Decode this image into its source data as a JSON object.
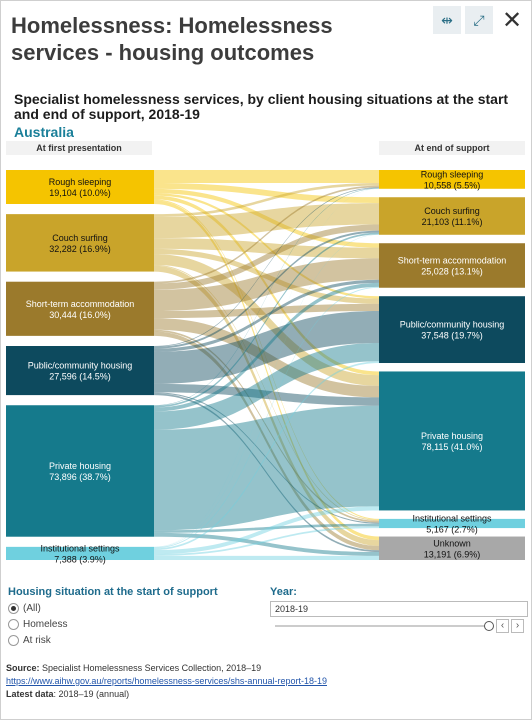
{
  "header": {
    "title": "Homelessness: Homelessness services - housing outcomes",
    "icons": [
      "compare-icon",
      "fullscreen-icon",
      "close-icon"
    ]
  },
  "chart_data": {
    "type": "sankey",
    "title": "Specialist homelessness services, by client housing situations at the start and end of support, 2018-19",
    "subtitle": "Australia",
    "left_heading": "At first presentation",
    "right_heading": "At end of support",
    "sources": [
      {
        "name": "Rough sleeping",
        "label": "19,104 (10.0%)",
        "value": 19104,
        "color": "#f5c400"
      },
      {
        "name": "Couch surfing",
        "label": "32,282 (16.9%)",
        "value": 32282,
        "color": "#c9a42a"
      },
      {
        "name": "Short-term accommodation",
        "label": "30,444 (16.0%)",
        "value": 30444,
        "color": "#9b7a2c"
      },
      {
        "name": "Public/community housing",
        "label": "27,596 (14.5%)",
        "value": 27596,
        "color": "#0d4a5e"
      },
      {
        "name": "Private housing",
        "label": "73,896 (38.7%)",
        "value": 73896,
        "color": "#157a8c"
      },
      {
        "name": "Institutional settings",
        "label": "7,388 (3.9%)",
        "value": 7388,
        "color": "#6fd0df"
      }
    ],
    "targets": [
      {
        "name": "Rough sleeping",
        "label": "10,558 (5.5%)",
        "value": 10558,
        "color": "#f5c400"
      },
      {
        "name": "Couch surfing",
        "label": "21,103 (11.1%)",
        "value": 21103,
        "color": "#c9a42a"
      },
      {
        "name": "Short-term accommodation",
        "label": "25,028 (13.1%)",
        "value": 25028,
        "color": "#9b7a2c"
      },
      {
        "name": "Public/community housing",
        "label": "37,548 (19.7%)",
        "value": 37548,
        "color": "#0d4a5e"
      },
      {
        "name": "Private housing",
        "label": "78,115 (41.0%)",
        "value": 78115,
        "color": "#157a8c"
      },
      {
        "name": "Institutional settings",
        "label": "5,167 (2.7%)",
        "value": 5167,
        "color": "#6fd0df"
      },
      {
        "name": "Unknown",
        "label": "13,191 (6.9%)",
        "value": 13191,
        "color": "#a8a8a8"
      }
    ],
    "flows": [
      [
        7300,
        3300,
        2500,
        1300,
        2100,
        600,
        2004
      ],
      [
        1500,
        12000,
        6000,
        3000,
        6000,
        500,
        3282
      ],
      [
        1000,
        3500,
        12000,
        4000,
        6500,
        1000,
        2444
      ],
      [
        400,
        1100,
        1800,
        18000,
        4700,
        600,
        996
      ],
      [
        258,
        1003,
        2228,
        10248,
        56515,
        1500,
        2144
      ],
      [
        100,
        200,
        500,
        1000,
        2300,
        967,
        2321
      ]
    ]
  },
  "controls": {
    "situation_heading": "Housing situation at the start of support",
    "options": [
      "(All)",
      "Homeless",
      "At risk"
    ],
    "selected_index": 0,
    "year_heading": "Year:",
    "year_value": "2018-19"
  },
  "footer": {
    "source_label": "Source:",
    "source_text": "Specialist Homelessness Services Collection, 2018–19",
    "link": "https://www.aihw.gov.au/reports/homelessness-services/shs-annual-report-18-19",
    "latest_label": "Latest data",
    "latest_text": ": 2018–19 (annual)"
  }
}
